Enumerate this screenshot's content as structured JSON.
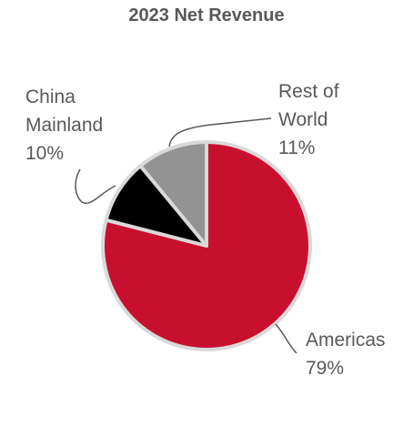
{
  "chart_data": {
    "type": "pie",
    "title": "2023 Net Revenue",
    "slices": [
      {
        "label_lines": [
          "Americas"
        ],
        "pct_label": "79%",
        "value": 79,
        "color": "#c8102e"
      },
      {
        "label_lines": [
          "China",
          "Mainland"
        ],
        "pct_label": "10%",
        "value": 10,
        "color": "#000000"
      },
      {
        "label_lines": [
          "Rest of",
          "World"
        ],
        "pct_label": "11%",
        "value": 11,
        "color": "#939393"
      }
    ],
    "slice_border_color": "#d9d9d9",
    "leader_line_color": "#595959"
  }
}
